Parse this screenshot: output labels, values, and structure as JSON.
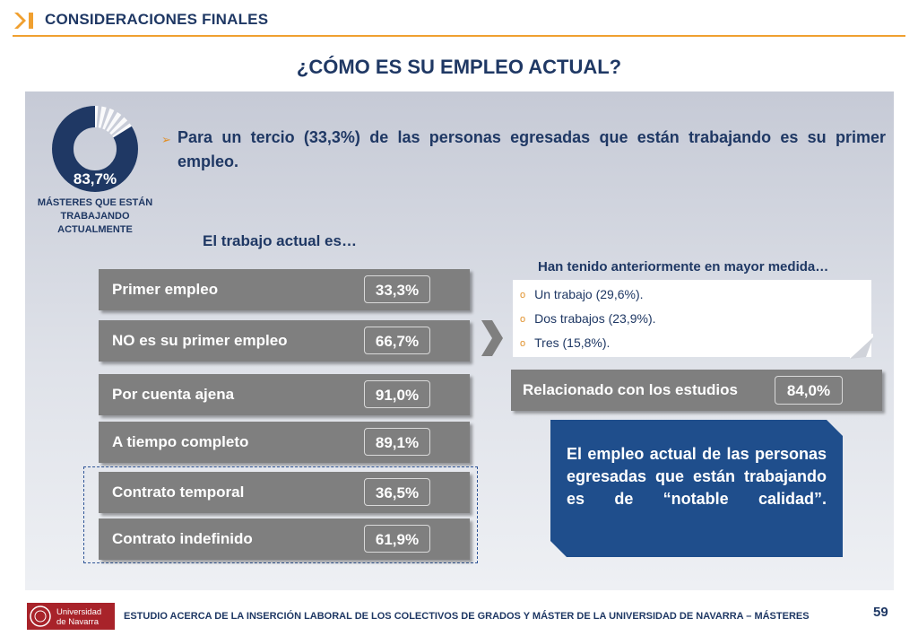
{
  "header": {
    "title": "CONSIDERACIONES FINALES"
  },
  "main_title": "¿CÓMO ES SU EMPLEO ACTUAL?",
  "donut": {
    "value": "83,7%",
    "fraction": 0.837,
    "caption_lines": [
      "MÁSTERES QUE ESTÁN",
      "TRABAJANDO",
      "ACTUALMENTE"
    ]
  },
  "bullet_text": "Para un tercio (33,3%) de las personas egresadas que están trabajando es su primer empleo.",
  "section_label": "El trabajo actual es…",
  "bars": [
    {
      "label": "Primer empleo",
      "value": "33,3%"
    },
    {
      "label": "NO es su primer empleo",
      "value": "66,7%"
    },
    {
      "label": "Por cuenta ajena",
      "value": "91,0%"
    },
    {
      "label": "A tiempo completo",
      "value": "89,1%"
    },
    {
      "label": "Contrato temporal",
      "value": "36,5%"
    },
    {
      "label": "Contrato indefinido",
      "value": "61,9%"
    }
  ],
  "previous": {
    "title": "Han tenido anteriormente en mayor medida…",
    "items": [
      "Un trabajo (29,6%).",
      "Dos trabajos (23,9%).",
      "Tres (15,8%)."
    ]
  },
  "related": {
    "label": "Relacionado con los estudios",
    "value": "84,0%"
  },
  "callout_text": "El empleo actual de las personas egresadas que están trabajando es de “notable calidad”.",
  "footer": {
    "logo_lines": [
      "Universidad",
      "de Navarra"
    ],
    "text": "ESTUDIO ACERCA DE LA INSERCIÓN LABORAL DE LOS COLECTIVOS DE GRADOS Y MÁSTER DE LA UNIVERSIDAD DE NAVARRA – MÁSTERES",
    "page_number": "59"
  },
  "colors": {
    "navy": "#1f3864",
    "accent_orange": "#f0a030",
    "bar_grey": "#7f7f7f",
    "callout_blue": "#1f4e8c"
  }
}
